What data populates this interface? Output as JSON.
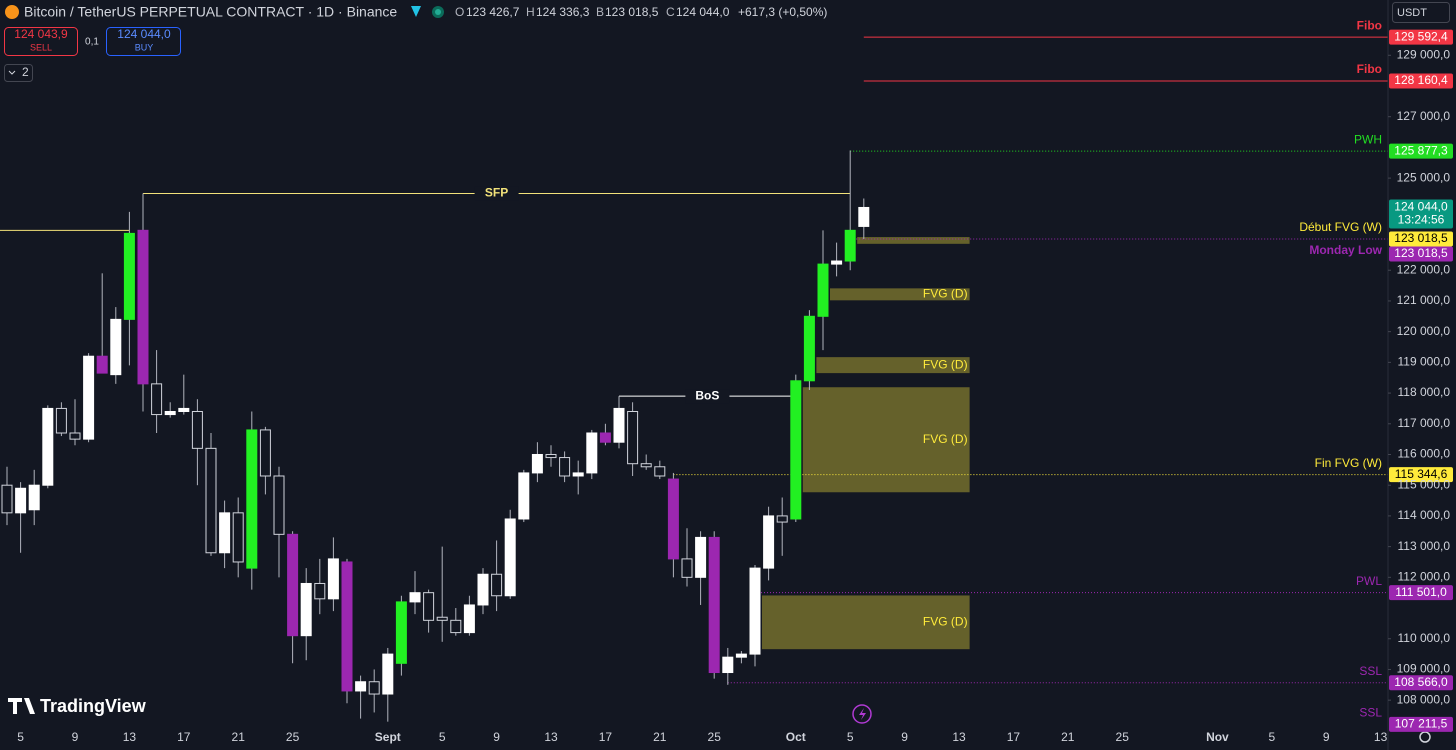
{
  "header": {
    "title": "Bitcoin / TetherUS PERPETUAL CONTRACT · 1D · Binance",
    "o_key": "O",
    "o": "123 426,7",
    "h_key": "H",
    "h": "124 336,3",
    "b_key": "B",
    "b": "123 018,5",
    "c_key": "C",
    "c": "124 044,0",
    "change": "+617,3 (+0,50%)"
  },
  "trade": {
    "sell_price": "124 043,9",
    "sell": "SELL",
    "spread": "0,1",
    "buy_price": "124 044,0",
    "buy": "BUY",
    "layers": "2",
    "currency": "USDT"
  },
  "brand": "TradingView",
  "chart_data": {
    "type": "candlestick",
    "categories": [
      null,
      "5",
      null,
      null,
      null,
      "9",
      null,
      null,
      null,
      "13",
      null,
      null,
      null,
      "17",
      null,
      null,
      null,
      "21",
      null,
      null,
      null,
      "25",
      null,
      null,
      null,
      null,
      null,
      null,
      "Sept",
      null,
      null,
      null,
      "5",
      null,
      null,
      null,
      "9",
      null,
      null,
      null,
      "13",
      null,
      null,
      null,
      "17",
      null,
      null,
      null,
      "21",
      null,
      null,
      null,
      "25",
      null,
      null,
      null,
      null,
      null,
      "Oct",
      null,
      null,
      null,
      "5",
      null,
      null,
      null,
      "9",
      null,
      null,
      null,
      "13",
      null,
      null,
      null,
      "17",
      null,
      null,
      null,
      "21",
      null,
      null,
      null,
      "25",
      null,
      null,
      null,
      null,
      null,
      null,
      "Nov",
      null,
      null,
      null,
      "5",
      null,
      null,
      null,
      "9",
      null,
      null,
      null,
      "13"
    ],
    "open": [
      115000,
      114100,
      114200,
      115000,
      117500,
      116700,
      116500,
      119200,
      118600,
      120400,
      123300,
      118300,
      117300,
      117400,
      117400,
      116200,
      112800,
      114100,
      112300,
      116800,
      115300,
      113400,
      110100,
      111800,
      111300,
      112500,
      108300,
      108600,
      108200,
      109200,
      111200,
      111500,
      110700,
      110600,
      110200,
      111100,
      112100,
      111400,
      113900,
      115400,
      116000,
      115900,
      115300,
      115400,
      116700,
      116400,
      117400,
      115700,
      115600,
      115200,
      112600,
      112000,
      113300,
      108900,
      109400,
      109500,
      112300,
      114000,
      113900,
      118400,
      120500,
      122200,
      122300,
      123426.7,
      null,
      null,
      null,
      null,
      null,
      null,
      null,
      null,
      null,
      null,
      null,
      null,
      null,
      null,
      null,
      null,
      null,
      null,
      null,
      null,
      null,
      null,
      null,
      null,
      null,
      null,
      null,
      null,
      null,
      null,
      null,
      null,
      null,
      null,
      null,
      null,
      null,
      null
    ],
    "high": [
      115600,
      115100,
      115500,
      117600,
      117700,
      117800,
      119300,
      121900,
      120800,
      123900,
      124500,
      119400,
      117700,
      118600,
      117800,
      116700,
      114500,
      114600,
      117400,
      116900,
      115600,
      113500,
      112300,
      112600,
      113300,
      112600,
      108800,
      109000,
      109700,
      111400,
      112200,
      111600,
      113000,
      111000,
      111400,
      112300,
      113200,
      114200,
      115500,
      116400,
      116300,
      116100,
      115800,
      116800,
      117000,
      117900,
      117700,
      116000,
      115800,
      115400,
      113600,
      113500,
      113500,
      109700,
      109600,
      112400,
      114300,
      114600,
      118600,
      120700,
      123300,
      122900,
      125900,
      124336.3,
      null,
      null,
      null,
      null,
      null,
      null,
      null,
      null,
      null,
      null,
      null,
      null,
      null,
      null,
      null,
      null,
      null,
      null,
      null,
      null,
      null,
      null,
      null,
      null,
      null,
      null,
      null,
      null,
      null,
      null,
      null,
      null,
      null,
      null,
      null,
      null,
      null,
      null
    ],
    "low": [
      113700,
      112800,
      113700,
      114900,
      116600,
      116300,
      116400,
      118700,
      118300,
      118900,
      117400,
      116700,
      117200,
      117300,
      115000,
      112700,
      112300,
      112000,
      111600,
      114700,
      112000,
      109200,
      109300,
      110800,
      110900,
      107900,
      107400,
      107600,
      107300,
      108800,
      110800,
      110200,
      109900,
      110100,
      110100,
      110800,
      110900,
      111300,
      113800,
      115100,
      115600,
      115100,
      114700,
      115200,
      116300,
      116200,
      115300,
      115500,
      115200,
      112000,
      111700,
      111100,
      108700,
      108500,
      109200,
      109100,
      111900,
      112700,
      113800,
      118100,
      119400,
      121800,
      122000,
      123018.5,
      null,
      null,
      null,
      null,
      null,
      null,
      null,
      null,
      null,
      null,
      null,
      null,
      null,
      null,
      null,
      null,
      null,
      null,
      null,
      null,
      null,
      null,
      null,
      null,
      null,
      null,
      null,
      null,
      null,
      null,
      null,
      null,
      null,
      null,
      null,
      null,
      null,
      null
    ],
    "close": [
      114100,
      114900,
      115000,
      117500,
      116700,
      116500,
      119200,
      118650,
      120400,
      123200,
      118300,
      117300,
      117400,
      117500,
      116200,
      112800,
      114100,
      112500,
      116800,
      115300,
      113400,
      110100,
      111800,
      111300,
      112600,
      108300,
      108600,
      108200,
      109500,
      111200,
      111500,
      110600,
      110600,
      110200,
      111100,
      112100,
      111400,
      113900,
      115400,
      116000,
      115900,
      115300,
      115400,
      116700,
      116400,
      117500,
      115700,
      115600,
      115300,
      112600,
      112000,
      113300,
      108900,
      109400,
      109500,
      112300,
      114000,
      113800,
      118400,
      120500,
      122200,
      122300,
      123300,
      124044.0,
      null,
      null,
      null,
      null,
      null,
      null,
      null,
      null,
      null,
      null,
      null,
      null,
      null,
      null,
      null,
      null,
      null,
      null,
      null,
      null,
      null,
      null,
      null,
      null,
      null,
      null,
      null,
      null,
      null,
      null,
      null,
      null,
      null,
      null,
      null,
      null,
      null,
      null
    ],
    "colors": [
      "#131722",
      "#ffffff",
      "#ffffff",
      "#ffffff",
      "#131722",
      "#131722",
      "#ffffff",
      "#9c27b0",
      "#ffffff",
      "#22f022",
      "#9c27b0",
      "#131722",
      "#ffffff",
      "#ffffff",
      "#131722",
      "#131722",
      "#ffffff",
      "#131722",
      "#22f022",
      "#131722",
      "#131722",
      "#9c27b0",
      "#ffffff",
      "#131722",
      "#ffffff",
      "#9c27b0",
      "#ffffff",
      "#131722",
      "#ffffff",
      "#22f022",
      "#ffffff",
      "#131722",
      "#131722",
      "#131722",
      "#ffffff",
      "#ffffff",
      "#131722",
      "#ffffff",
      "#ffffff",
      "#ffffff",
      "#131722",
      "#131722",
      "#ffffff",
      "#ffffff",
      "#9c27b0",
      "#ffffff",
      "#131722",
      "#131722",
      "#131722",
      "#9c27b0",
      "#131722",
      "#ffffff",
      "#9c27b0",
      "#ffffff",
      "#ffffff",
      "#ffffff",
      "#ffffff",
      "#131722",
      "#22f022",
      "#22f022",
      "#22f022",
      "#ffffff",
      "#22f022",
      "#ffffff",
      null,
      null,
      null,
      null,
      null,
      null,
      null,
      null,
      null,
      null,
      null,
      null,
      null,
      null,
      null,
      null,
      null,
      null,
      null,
      null,
      null,
      null,
      null,
      null,
      null,
      null,
      null,
      null,
      null,
      null,
      null,
      null,
      null,
      null,
      null,
      null,
      null,
      null
    ],
    "ylim": [
      107100,
      130800
    ],
    "yticks": [
      {
        "value": 129000,
        "label": "129 000,0"
      },
      {
        "value": 127000,
        "label": "127 000,0"
      },
      {
        "value": 125000,
        "label": "125 000,0"
      },
      {
        "value": 122000,
        "label": "122 000,0"
      },
      {
        "value": 121000,
        "label": "121 000,0"
      },
      {
        "value": 120000,
        "label": "120 000,0"
      },
      {
        "value": 119000,
        "label": "119 000,0"
      },
      {
        "value": 118000,
        "label": "118 000,0"
      },
      {
        "value": 117000,
        "label": "117 000,0"
      },
      {
        "value": 116000,
        "label": "116 000,0"
      },
      {
        "value": 115000,
        "label": "115 000,0"
      },
      {
        "value": 114000,
        "label": "114 000,0"
      },
      {
        "value": 113000,
        "label": "113 000,0"
      },
      {
        "value": 112000,
        "label": "112 000,0"
      },
      {
        "value": 110000,
        "label": "110 000,0"
      },
      {
        "value": 109000,
        "label": "109 000,0"
      },
      {
        "value": 108000,
        "label": "108 000,0"
      }
    ],
    "zones": [
      {
        "low": 122860,
        "high": 123080,
        "x": [
          62,
          71
        ]
      },
      {
        "label": "FVG (D)",
        "low": 121020,
        "high": 121410,
        "x": [
          60,
          71
        ]
      },
      {
        "label": "FVG (D)",
        "low": 118650,
        "high": 119170,
        "x": [
          59,
          71
        ]
      },
      {
        "label": "FVG (D)",
        "low": 114770,
        "high": 118190,
        "x": [
          58,
          71
        ]
      },
      {
        "label": "FVG (D)",
        "low": 109660,
        "high": 111410,
        "x": [
          55,
          71
        ]
      }
    ],
    "zone_color": "#ffeb3b",
    "segments": [
      {
        "label": "SFP",
        "value": 124500,
        "x": [
          10,
          62
        ],
        "color": "#f2e27a"
      },
      {
        "label": "BoS",
        "value": 117900,
        "x": [
          45,
          58
        ],
        "color": "#ffffff"
      },
      {
        "value": 123300,
        "x": [
          0,
          9
        ],
        "color": "#f2e27a"
      }
    ],
    "levels": [
      {
        "label": "Fibo",
        "value": 129592.4,
        "value_label": "129 592,4",
        "color": "#f23645",
        "from": 63,
        "line": "solid"
      },
      {
        "label": "Fibo",
        "value": 128160.4,
        "value_label": "128 160,4",
        "color": "#f23645",
        "from": 63,
        "line": "solid"
      },
      {
        "label": "PWH",
        "value": 125877.3,
        "value_label": "125 877,3",
        "color": "#22dd22",
        "from": 62,
        "line": "dotted"
      },
      {
        "label": "Début FVG (W)",
        "value": 123018.5,
        "value_label": "123 018,5",
        "color": "#ffeb3b",
        "tag_text": "#000000"
      },
      {
        "label": "Monday Low",
        "value": 123018.5,
        "value_label": "123 018,5",
        "color": "#9c27b0",
        "from": 62,
        "line": "dotted"
      },
      {
        "label": "Fin FVG (W)",
        "value": 115344.6,
        "value_label": "115 344,6",
        "color": "#ffeb3b",
        "tag_text": "#000000",
        "from": 49,
        "line": "dotted"
      },
      {
        "label": "PWL",
        "value": 111501.0,
        "value_label": "111 501,0",
        "color": "#9c27b0",
        "from": 55,
        "line": "dotted"
      },
      {
        "label": "SSL",
        "value": 108566.0,
        "value_label": "108 566,0",
        "color": "#9c27b0",
        "from": 53,
        "line": "dotted"
      },
      {
        "label": "SSL",
        "value": 107211.5,
        "value_label": "107 211,5",
        "color": "#9c27b0"
      }
    ],
    "last_price": {
      "value": 124044.0,
      "label": "124 044,0",
      "countdown": "13:24:56",
      "color": "#089981"
    }
  }
}
